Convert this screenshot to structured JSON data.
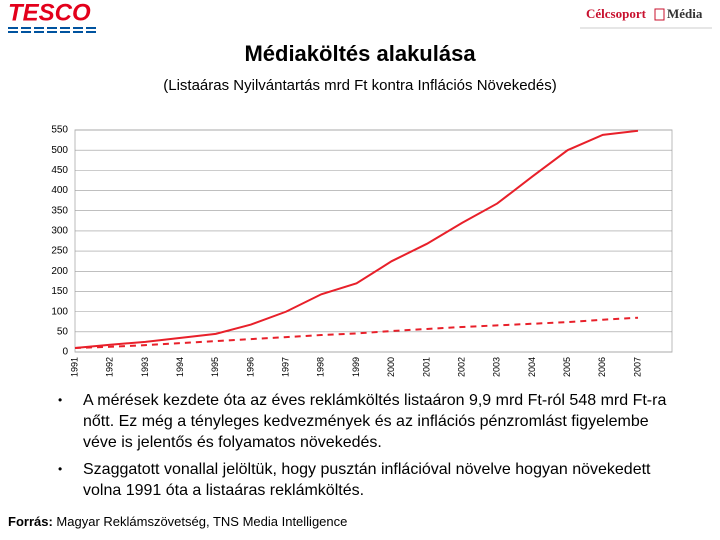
{
  "header": {
    "logo": "TESCO",
    "brand": "Célcsoport",
    "brand2": "Média"
  },
  "chart_data": {
    "type": "line",
    "title": "Médiaköltés alakulása",
    "subtitle": "(Listaáras Nyilvántartás mrd Ft kontra Inflációs Növekedés)",
    "categories": [
      "1991",
      "1992",
      "1993",
      "1994",
      "1995",
      "1996",
      "1997",
      "1998",
      "1999",
      "2000",
      "2001",
      "2002",
      "2003",
      "2004",
      "2005",
      "2006",
      "2007"
    ],
    "series": [
      {
        "color": "#e8202a",
        "dashed": false,
        "values": [
          9.9,
          18,
          25,
          35,
          45,
          68,
          100,
          143,
          170,
          225,
          268,
          320,
          368,
          435,
          500,
          538,
          548
        ]
      },
      {
        "color": "#e8202a",
        "dashed": true,
        "values": [
          10,
          13,
          17,
          22,
          27,
          32,
          37,
          42,
          46,
          52,
          57,
          62,
          66,
          70,
          74,
          80,
          85
        ]
      }
    ],
    "ylim": [
      0,
      550
    ],
    "yticks": [
      0,
      50,
      100,
      150,
      200,
      250,
      300,
      350,
      400,
      450,
      500,
      550
    ],
    "grid": true
  },
  "bullets": [
    "A mérések kezdete óta az éves reklámköltés listaáron 9,9 mrd Ft-ról 548 mrd Ft-ra nőtt. Ez még a tényleges kedvezmények és az inflációs pénzromlást figyelembe véve is jelentős és folyamatos növekedés.",
    "Szaggatott vonallal jelöltük, hogy pusztán inflációval növelve hogyan növekedett volna 1991 óta a listaáras reklámköltés."
  ],
  "source": {
    "label": "Forrás:",
    "text": "Magyar Reklámszövetség, TNS Media Intelligence"
  }
}
